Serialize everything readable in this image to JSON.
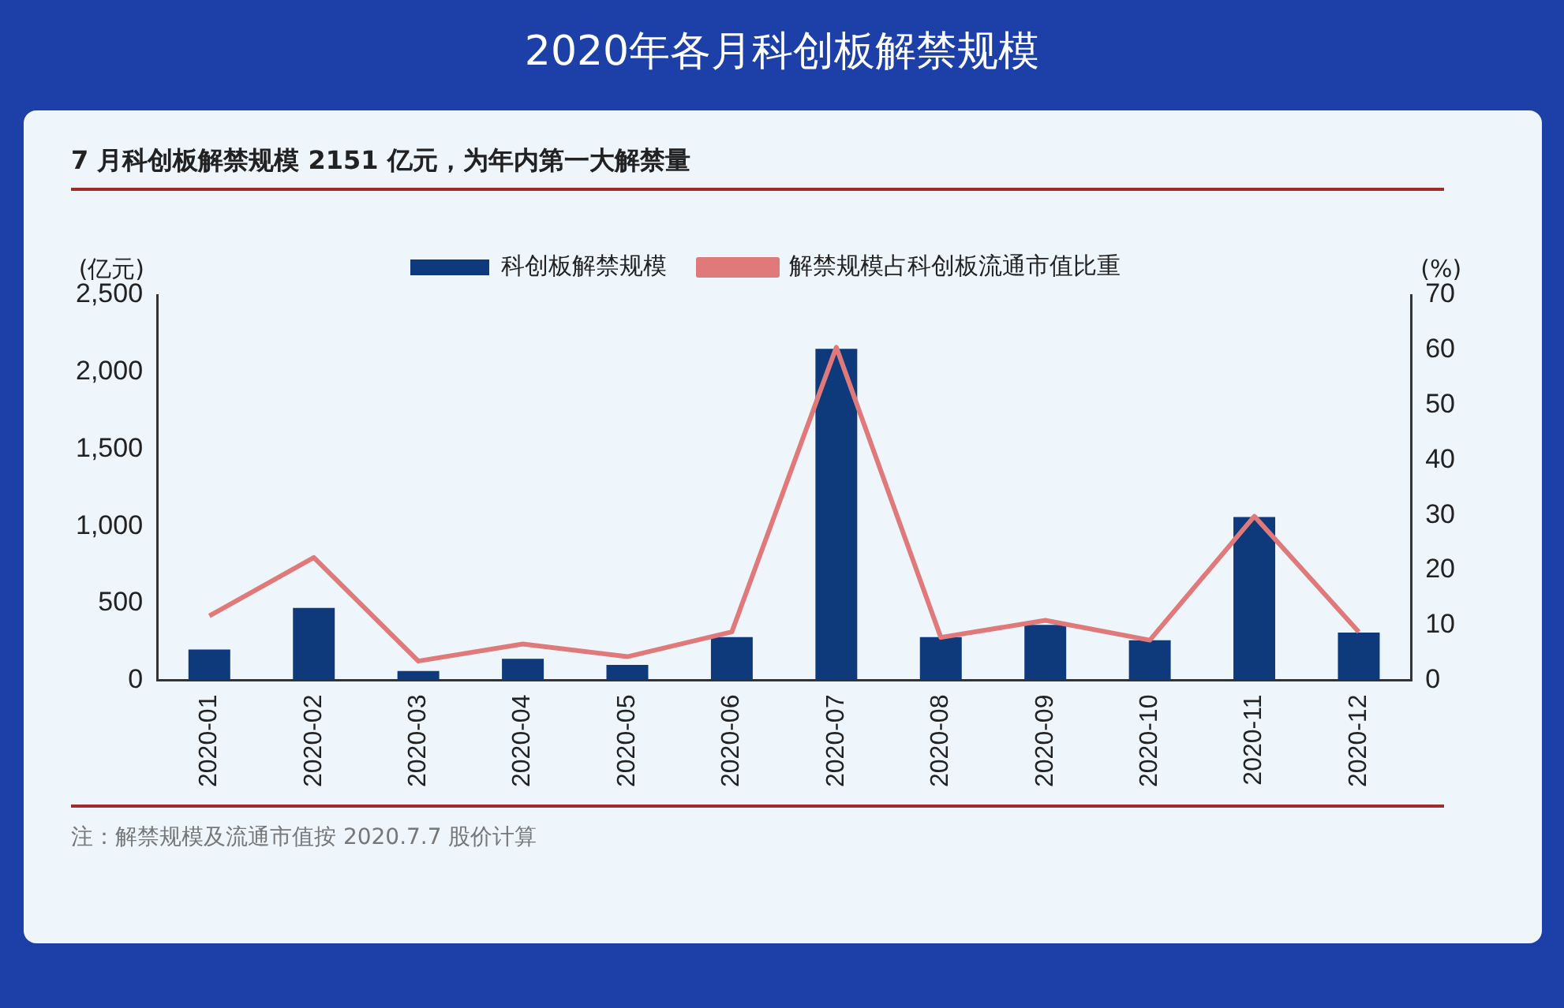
{
  "chart_data": {
    "type": "bar",
    "title": "2020年各月科创板解禁规模",
    "subtitle": "7 月科创板解禁规模 2151 亿元，为年内第一大解禁量",
    "ylabel": "(亿元)",
    "y2label": "(%)",
    "categories": [
      "2020-01",
      "2020-02",
      "2020-03",
      "2020-04",
      "2020-05",
      "2020-06",
      "2020-07",
      "2020-08",
      "2020-09",
      "2020-10",
      "2020-11",
      "2020-12"
    ],
    "series": [
      {
        "name": "科创板解禁规模",
        "color": "#0e3a7c",
        "values": [
          200,
          470,
          60,
          140,
          100,
          280,
          2151,
          280,
          360,
          260,
          1060,
          310
        ]
      },
      {
        "name": "解禁规模占科创板流通市值比重",
        "type": "line",
        "axis": "y2",
        "color": "#e07a7a",
        "values": [
          11.7,
          22.3,
          3.5,
          6.6,
          4.3,
          8.8,
          60.5,
          7.8,
          10.9,
          7.3,
          29.8,
          8.8
        ]
      }
    ],
    "ylim": [
      0,
      2500
    ],
    "yticks": [
      0,
      {
        "value": 500,
        "label": "500"
      },
      {
        "value": 1000,
        "label": "1,000"
      },
      {
        "value": 1500,
        "label": "1,500"
      },
      {
        "value": 2000,
        "label": "2,000"
      },
      {
        "value": 2500,
        "label": "2,500"
      }
    ],
    "y2lim": [
      0,
      70
    ],
    "y2ticks": [
      0,
      10,
      20,
      30,
      40,
      50,
      60,
      70
    ],
    "grid": false,
    "legend": "top",
    "marker": "none",
    "line_style": "solid",
    "annotations": [
      "注：解禁规模及流通市值按 2020.7.7 股价计算"
    ]
  }
}
